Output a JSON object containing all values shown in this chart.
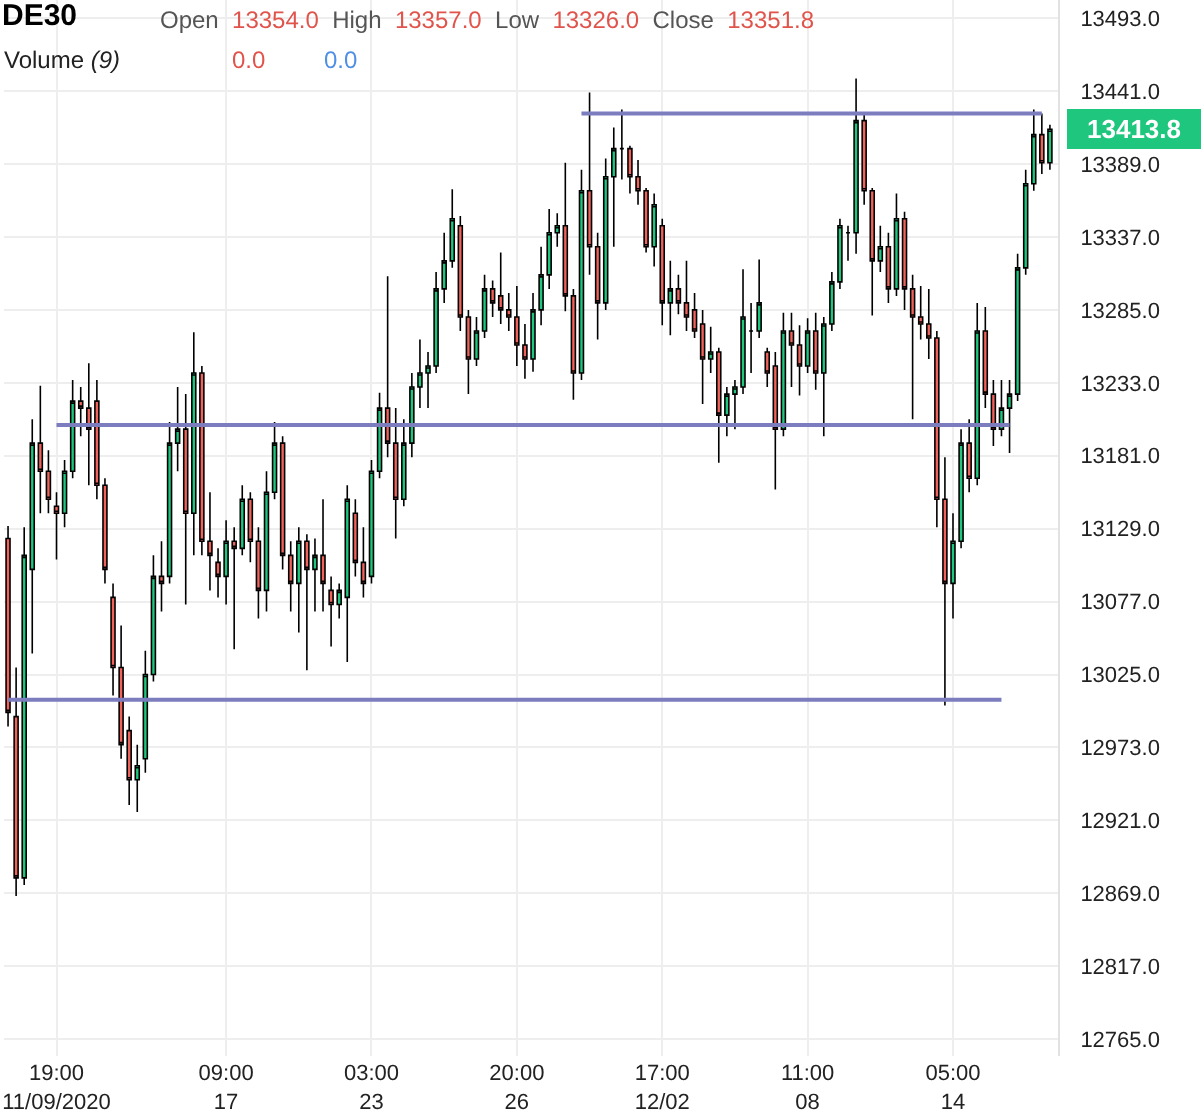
{
  "chart_data": {
    "type": "candlestick",
    "title": "DE30",
    "subtitle": "Open 13354.0 High 13357.0 Low 13326.0 Close 13351.8",
    "annotations": [
      "Volume (9)",
      "0.0",
      "0.0",
      "13413.8"
    ],
    "categories": [
      null,
      null,
      null,
      null,
      null,
      null,
      "19:00\n11/09/2020",
      null,
      null,
      null,
      null,
      null,
      null,
      null,
      null,
      null,
      null,
      null,
      null,
      null,
      null,
      null,
      null,
      null,
      null,
      null,
      null,
      "09:00\n17",
      null,
      null,
      null,
      null,
      null,
      null,
      null,
      null,
      null,
      null,
      null,
      null,
      null,
      null,
      null,
      null,
      null,
      "03:00\n23",
      null,
      null,
      null,
      null,
      null,
      null,
      null,
      null,
      null,
      null,
      null,
      null,
      null,
      null,
      null,
      null,
      null,
      "20:00\n26",
      null,
      null,
      null,
      null,
      null,
      null,
      null,
      null,
      null,
      null,
      null,
      null,
      null,
      null,
      null,
      null,
      null,
      "17:00\n12/02",
      null,
      null,
      null,
      null,
      null,
      null,
      null,
      null,
      null,
      null,
      null,
      null,
      null,
      null,
      null,
      null,
      null,
      "11:00\n08",
      null,
      null,
      null,
      null,
      null,
      null,
      null,
      null,
      null,
      null,
      null,
      null,
      null,
      null,
      null,
      null,
      null,
      "05:00\n14",
      null,
      null,
      null,
      null,
      null,
      null,
      null,
      null,
      null,
      null,
      null,
      null
    ],
    "ohlc": [
      [
        13122,
        13131,
        12988,
        12998
      ],
      [
        12995,
        13030,
        12867,
        12880
      ],
      [
        12880,
        13130,
        12875,
        13110
      ],
      [
        13100,
        13207,
        13040,
        13190
      ],
      [
        13190,
        13231,
        13140,
        13170
      ],
      [
        13170,
        13185,
        13140,
        13150
      ],
      [
        13145,
        13155,
        13107,
        13140
      ],
      [
        13140,
        13178,
        13130,
        13170
      ],
      [
        13170,
        13235,
        13165,
        13220
      ],
      [
        13220,
        13230,
        13195,
        13215
      ],
      [
        13215,
        13247,
        13160,
        13200
      ],
      [
        13220,
        13235,
        13150,
        13160
      ],
      [
        13160,
        13165,
        13090,
        13100
      ],
      [
        13080,
        13090,
        13010,
        13030
      ],
      [
        13030,
        13060,
        12965,
        12975
      ],
      [
        12985,
        12995,
        12932,
        12950
      ],
      [
        12950,
        12975,
        12927,
        12960
      ],
      [
        12965,
        13042,
        12955,
        13025
      ],
      [
        13025,
        13110,
        13020,
        13095
      ],
      [
        13095,
        13120,
        13070,
        13090
      ],
      [
        13095,
        13205,
        13090,
        13190
      ],
      [
        13190,
        13230,
        13170,
        13200
      ],
      [
        13200,
        13225,
        13075,
        13140
      ],
      [
        13140,
        13269,
        13110,
        13240
      ],
      [
        13240,
        13245,
        13110,
        13120
      ],
      [
        13120,
        13155,
        13085,
        13110
      ],
      [
        13105,
        13115,
        13080,
        13095
      ],
      [
        13095,
        13135,
        13075,
        13120
      ],
      [
        13120,
        13130,
        13043,
        13115
      ],
      [
        13115,
        13160,
        13110,
        13150
      ],
      [
        13150,
        13155,
        13105,
        13120
      ],
      [
        13120,
        13130,
        13065,
        13085
      ],
      [
        13085,
        13170,
        13070,
        13155
      ],
      [
        13155,
        13205,
        13150,
        13190
      ],
      [
        13190,
        13195,
        13100,
        13110
      ],
      [
        13110,
        13120,
        13070,
        13090
      ],
      [
        13090,
        13130,
        13055,
        13120
      ],
      [
        13120,
        13125,
        13028,
        13100
      ],
      [
        13100,
        13122,
        13070,
        13110
      ],
      [
        13110,
        13150,
        13070,
        13090
      ],
      [
        13085,
        13095,
        13045,
        13075
      ],
      [
        13075,
        13090,
        13065,
        13085
      ],
      [
        13080,
        13160,
        13034,
        13150
      ],
      [
        13140,
        13150,
        13095,
        13105
      ],
      [
        13105,
        13130,
        13080,
        13090
      ],
      [
        13095,
        13178,
        13090,
        13170
      ],
      [
        13170,
        13226,
        13165,
        13215
      ],
      [
        13215,
        13309,
        13180,
        13190
      ],
      [
        13190,
        13215,
        13122,
        13150
      ],
      [
        13150,
        13207,
        13145,
        13190
      ],
      [
        13190,
        13240,
        13180,
        13230
      ],
      [
        13230,
        13264,
        13215,
        13240
      ],
      [
        13240,
        13255,
        13215,
        13245
      ],
      [
        13245,
        13312,
        13240,
        13300
      ],
      [
        13300,
        13340,
        13290,
        13320
      ],
      [
        13320,
        13371,
        13315,
        13350
      ],
      [
        13345,
        13352,
        13270,
        13280
      ],
      [
        13280,
        13285,
        13225,
        13250
      ],
      [
        13250,
        13280,
        13245,
        13270
      ],
      [
        13270,
        13310,
        13265,
        13300
      ],
      [
        13300,
        13306,
        13280,
        13290
      ],
      [
        13295,
        13326,
        13275,
        13285
      ],
      [
        13285,
        13297,
        13270,
        13280
      ],
      [
        13280,
        13302,
        13245,
        13260
      ],
      [
        13260,
        13275,
        13236,
        13250
      ],
      [
        13250,
        13297,
        13241,
        13285
      ],
      [
        13285,
        13330,
        13274,
        13310
      ],
      [
        13310,
        13357,
        13300,
        13340
      ],
      [
        13340,
        13354,
        13330,
        13345
      ],
      [
        13345,
        13390,
        13284,
        13295
      ],
      [
        13295,
        13300,
        13221,
        13240
      ],
      [
        13240,
        13385,
        13235,
        13370
      ],
      [
        13370,
        13440,
        13310,
        13330
      ],
      [
        13330,
        13340,
        13264,
        13290
      ],
      [
        13290,
        13393,
        13285,
        13380
      ],
      [
        13380,
        13415,
        13330,
        13400
      ],
      [
        13400,
        13428,
        13378,
        13400
      ],
      [
        13400,
        13402,
        13368,
        13380
      ],
      [
        13380,
        13392,
        13360,
        13370
      ],
      [
        13370,
        13372,
        13326,
        13330
      ],
      [
        13330,
        13368,
        13316,
        13360
      ],
      [
        13345,
        13350,
        13274,
        13290
      ],
      [
        13290,
        13320,
        13267,
        13300
      ],
      [
        13300,
        13310,
        13282,
        13290
      ],
      [
        13290,
        13320,
        13270,
        13280
      ],
      [
        13285,
        13297,
        13265,
        13270
      ],
      [
        13275,
        13285,
        13218,
        13250
      ],
      [
        13250,
        13273,
        13240,
        13255
      ],
      [
        13255,
        13258,
        13176,
        13210
      ],
      [
        13210,
        13230,
        13195,
        13225
      ],
      [
        13225,
        13235,
        13200,
        13230
      ],
      [
        13230,
        13314,
        13225,
        13280
      ],
      [
        13270,
        13290,
        13240,
        13270
      ],
      [
        13270,
        13321,
        13265,
        13290
      ],
      [
        13255,
        13258,
        13230,
        13240
      ],
      [
        13245,
        13255,
        13157,
        13200
      ],
      [
        13200,
        13283,
        13195,
        13270
      ],
      [
        13270,
        13283,
        13230,
        13260
      ],
      [
        13260,
        13274,
        13224,
        13245
      ],
      [
        13245,
        13279,
        13240,
        13270
      ],
      [
        13270,
        13283,
        13228,
        13240
      ],
      [
        13240,
        13280,
        13195,
        13275
      ],
      [
        13275,
        13312,
        13270,
        13305
      ],
      [
        13305,
        13350,
        13300,
        13345
      ],
      [
        13340,
        13345,
        13320,
        13340
      ],
      [
        13340,
        13450,
        13325,
        13420
      ],
      [
        13420,
        13425,
        13360,
        13370
      ],
      [
        13370,
        13372,
        13281,
        13320
      ],
      [
        13320,
        13345,
        13312,
        13330
      ],
      [
        13330,
        13340,
        13290,
        13300
      ],
      [
        13300,
        13368,
        13295,
        13350
      ],
      [
        13350,
        13355,
        13285,
        13300
      ],
      [
        13300,
        13310,
        13207,
        13280
      ],
      [
        13280,
        13302,
        13264,
        13275
      ],
      [
        13275,
        13300,
        13250,
        13265
      ],
      [
        13265,
        13270,
        13130,
        13150
      ],
      [
        13150,
        13180,
        13003,
        13090
      ],
      [
        13090,
        13140,
        13065,
        13120
      ],
      [
        13120,
        13200,
        13115,
        13190
      ],
      [
        13190,
        13207,
        13155,
        13165
      ],
      [
        13165,
        13290,
        13160,
        13270
      ],
      [
        13270,
        13287,
        13215,
        13225
      ],
      [
        13225,
        13235,
        13188,
        13200
      ],
      [
        13200,
        13235,
        13195,
        13215
      ],
      [
        13215,
        13235,
        13183,
        13225
      ],
      [
        13225,
        13325,
        13220,
        13315
      ],
      [
        13315,
        13385,
        13310,
        13375
      ],
      [
        13375,
        13428,
        13370,
        13410
      ],
      [
        13410,
        13425,
        13382,
        13390
      ],
      [
        13390,
        13417,
        13385,
        13413.8
      ]
    ],
    "series": [
      {
        "type": "line",
        "color": "#7b7dbf",
        "values": [
          null,
          null,
          null,
          null,
          null,
          null,
          null,
          null,
          null,
          null,
          null,
          null,
          null,
          null,
          null,
          null,
          null,
          null,
          null,
          null,
          null,
          null,
          null,
          null,
          null,
          null,
          null,
          null,
          null,
          null,
          null,
          null,
          null,
          null,
          null,
          null,
          null,
          null,
          null,
          null,
          null,
          null,
          null,
          null,
          null,
          null,
          null,
          null,
          null,
          null,
          null,
          null,
          null,
          null,
          null,
          null,
          null,
          null,
          null,
          null,
          null,
          null,
          null,
          null,
          null,
          null,
          null,
          null,
          null,
          null,
          null,
          13425,
          13425,
          13425,
          13425,
          13425,
          13425,
          13425,
          13425,
          13425,
          13425,
          13425,
          13425,
          13425,
          13425,
          13425,
          13425,
          13425,
          13425,
          13425,
          13425,
          13425,
          13425,
          13425,
          13425,
          13425,
          13425,
          13425,
          13425,
          13425,
          13425,
          13425,
          13425,
          13425,
          13425,
          13425,
          13425,
          13425,
          13425,
          13425,
          13425,
          13425,
          13425,
          13425,
          13425,
          13425,
          13425,
          13425,
          13425,
          13425,
          13425,
          13425,
          13425,
          13425,
          13425,
          13425,
          13425,
          13425,
          13425,
          null
        ]
      },
      {
        "type": "line",
        "color": "#7b7dbf",
        "values": [
          null,
          null,
          null,
          null,
          null,
          null,
          13203,
          13203,
          13203,
          13203,
          13203,
          13203,
          13203,
          13203,
          13203,
          13203,
          13203,
          13203,
          13203,
          13203,
          13203,
          13203,
          13203,
          13203,
          13203,
          13203,
          13203,
          13203,
          13203,
          13203,
          13203,
          13203,
          13203,
          13203,
          13203,
          13203,
          13203,
          13203,
          13203,
          13203,
          13203,
          13203,
          13203,
          13203,
          13203,
          13203,
          13203,
          13203,
          13203,
          13203,
          13203,
          13203,
          13203,
          13203,
          13203,
          13203,
          13203,
          13203,
          13203,
          13203,
          13203,
          13203,
          13203,
          13203,
          13203,
          13203,
          13203,
          13203,
          13203,
          13203,
          13203,
          13203,
          13203,
          13203,
          13203,
          13203,
          13203,
          13203,
          13203,
          13203,
          13203,
          13203,
          13203,
          13203,
          13203,
          13203,
          13203,
          13203,
          13203,
          13203,
          13203,
          13203,
          13203,
          13203,
          13203,
          13203,
          13203,
          13203,
          13203,
          13203,
          13203,
          13203,
          13203,
          13203,
          13203,
          13203,
          13203,
          13203,
          13203,
          13203,
          13203,
          13203,
          13203,
          13203,
          13203,
          13203,
          13203,
          13203,
          13203,
          13203,
          13203,
          13203,
          13203,
          13203,
          13203,
          null,
          null,
          null,
          null,
          null
        ]
      },
      {
        "type": "line",
        "color": "#7b7dbf",
        "values": [
          13007,
          13007,
          13007,
          13007,
          13007,
          13007,
          13007,
          13007,
          13007,
          13007,
          13007,
          13007,
          13007,
          13007,
          13007,
          13007,
          13007,
          13007,
          13007,
          13007,
          13007,
          13007,
          13007,
          13007,
          13007,
          13007,
          13007,
          13007,
          13007,
          13007,
          13007,
          13007,
          13007,
          13007,
          13007,
          13007,
          13007,
          13007,
          13007,
          13007,
          13007,
          13007,
          13007,
          13007,
          13007,
          13007,
          13007,
          13007,
          13007,
          13007,
          13007,
          13007,
          13007,
          13007,
          13007,
          13007,
          13007,
          13007,
          13007,
          13007,
          13007,
          13007,
          13007,
          13007,
          13007,
          13007,
          13007,
          13007,
          13007,
          13007,
          13007,
          13007,
          13007,
          13007,
          13007,
          13007,
          13007,
          13007,
          13007,
          13007,
          13007,
          13007,
          13007,
          13007,
          13007,
          13007,
          13007,
          13007,
          13007,
          13007,
          13007,
          13007,
          13007,
          13007,
          13007,
          13007,
          13007,
          13007,
          13007,
          13007,
          13007,
          13007,
          13007,
          13007,
          13007,
          13007,
          13007,
          13007,
          13007,
          13007,
          13007,
          13007,
          13007,
          13007,
          13007,
          13007,
          13007,
          13007,
          13007,
          13007,
          13007,
          13007,
          13007,
          13007,
          null,
          null,
          null,
          null,
          null,
          null
        ]
      }
    ],
    "ylim": [
      12753,
      13506
    ],
    "yticks": [
      {
        "value": 12765,
        "label": "12765.0"
      },
      {
        "value": 12817,
        "label": "12817.0"
      },
      {
        "value": 12869,
        "label": "12869.0"
      },
      {
        "value": 12921,
        "label": "12921.0"
      },
      {
        "value": 12973,
        "label": "12973.0"
      },
      {
        "value": 13025,
        "label": "13025.0"
      },
      {
        "value": 13077,
        "label": "13077.0"
      },
      {
        "value": 13129,
        "label": "13129.0"
      },
      {
        "value": 13181,
        "label": "13181.0"
      },
      {
        "value": 13233,
        "label": "13233.0"
      },
      {
        "value": 13285,
        "label": "13285.0"
      },
      {
        "value": 13337,
        "label": "13337.0"
      },
      {
        "value": 13389,
        "label": "13389.0"
      },
      {
        "value": 13441,
        "label": "13441.0"
      },
      {
        "value": 13493,
        "label": "13493.0"
      }
    ],
    "grid": true
  }
}
